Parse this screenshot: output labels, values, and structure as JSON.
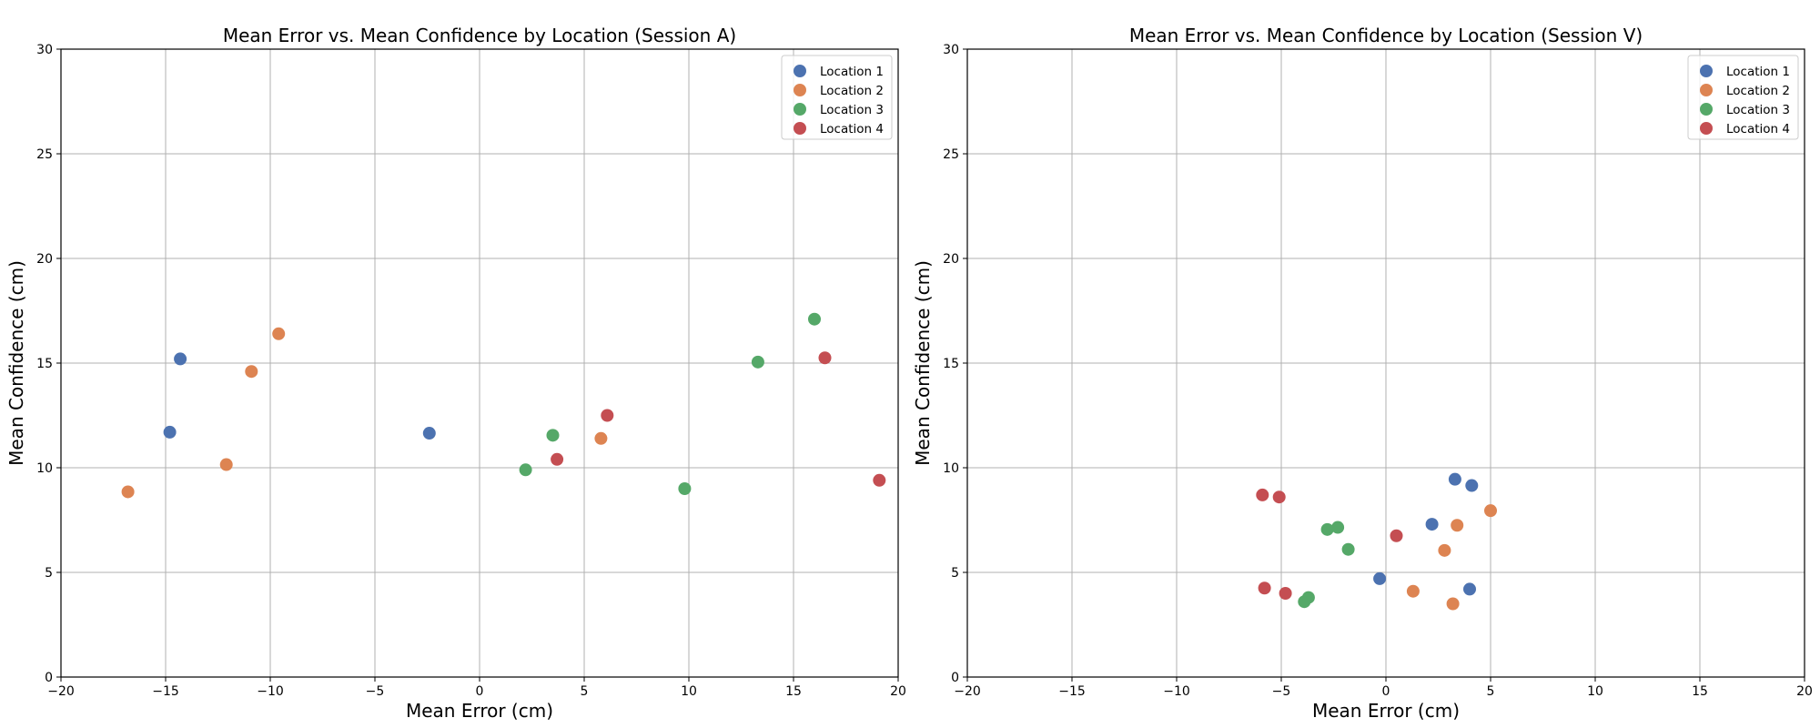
{
  "chart_data": [
    {
      "type": "scatter",
      "title": "Mean Error vs. Mean Confidence by Location (Session A)",
      "xlabel": "Mean Error (cm)",
      "ylabel": "Mean Confidence (cm)",
      "xlim": [
        -20,
        20
      ],
      "ylim": [
        0,
        30
      ],
      "xticks": [
        -20,
        -15,
        -10,
        -5,
        0,
        5,
        10,
        15,
        20
      ],
      "yticks": [
        0,
        5,
        10,
        15,
        20,
        25,
        30
      ],
      "grid": true,
      "legend": "top-right",
      "series": [
        {
          "name": "Location 1",
          "color": "#4c72b0",
          "points": [
            [
              -14.8,
              11.7
            ],
            [
              -14.3,
              15.2
            ],
            [
              -2.4,
              11.65
            ]
          ]
        },
        {
          "name": "Location 2",
          "color": "#dd8452",
          "points": [
            [
              -16.8,
              8.85
            ],
            [
              -12.1,
              10.15
            ],
            [
              -10.9,
              14.6
            ],
            [
              -9.6,
              16.4
            ],
            [
              5.8,
              11.4
            ]
          ]
        },
        {
          "name": "Location 3",
          "color": "#55a868",
          "points": [
            [
              2.2,
              9.9
            ],
            [
              3.5,
              11.55
            ],
            [
              9.8,
              9.0
            ],
            [
              13.3,
              15.05
            ],
            [
              16.0,
              17.1
            ]
          ]
        },
        {
          "name": "Location 4",
          "color": "#c44e52",
          "points": [
            [
              3.7,
              10.4
            ],
            [
              6.1,
              12.5
            ],
            [
              16.5,
              15.25
            ],
            [
              19.1,
              9.4
            ]
          ]
        }
      ]
    },
    {
      "type": "scatter",
      "title": "Mean Error vs. Mean Confidence by Location (Session V)",
      "xlabel": "Mean Error (cm)",
      "ylabel": "Mean Confidence (cm)",
      "xlim": [
        -20,
        20
      ],
      "ylim": [
        0,
        30
      ],
      "xticks": [
        -20,
        -15,
        -10,
        -5,
        0,
        5,
        10,
        15,
        20
      ],
      "yticks": [
        0,
        5,
        10,
        15,
        20,
        25,
        30
      ],
      "grid": true,
      "legend": "top-right",
      "series": [
        {
          "name": "Location 1",
          "color": "#4c72b0",
          "points": [
            [
              -0.3,
              4.7
            ],
            [
              2.2,
              7.3
            ],
            [
              3.3,
              9.45
            ],
            [
              4.0,
              4.2
            ],
            [
              4.1,
              9.15
            ]
          ]
        },
        {
          "name": "Location 2",
          "color": "#dd8452",
          "points": [
            [
              1.3,
              4.1
            ],
            [
              2.8,
              6.05
            ],
            [
              3.2,
              3.5
            ],
            [
              3.4,
              7.25
            ],
            [
              5.0,
              7.95
            ]
          ]
        },
        {
          "name": "Location 3",
          "color": "#55a868",
          "points": [
            [
              -3.9,
              3.6
            ],
            [
              -3.7,
              3.8
            ],
            [
              -2.8,
              7.05
            ],
            [
              -2.3,
              7.15
            ],
            [
              -1.8,
              6.1
            ]
          ]
        },
        {
          "name": "Location 4",
          "color": "#c44e52",
          "points": [
            [
              -5.9,
              8.7
            ],
            [
              -5.8,
              4.25
            ],
            [
              -5.1,
              8.6
            ],
            [
              -4.8,
              4.0
            ],
            [
              0.5,
              6.75
            ]
          ]
        }
      ]
    }
  ]
}
